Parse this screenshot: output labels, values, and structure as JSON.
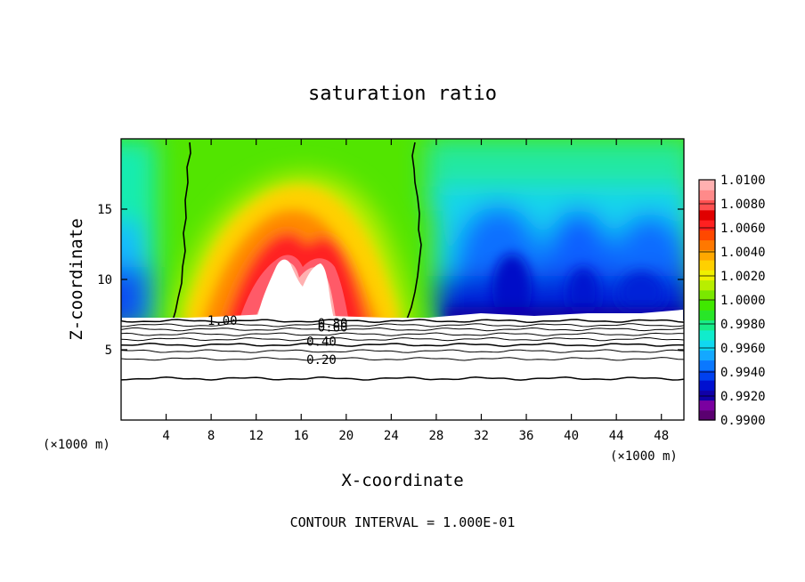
{
  "chart_data": {
    "type": "heatmap",
    "title": "saturation ratio",
    "xlabel": "X-coordinate",
    "ylabel": "Z-coordinate",
    "x_unit": "(×1000 m)",
    "y_unit": "(×1000 m)",
    "footer": "CONTOUR INTERVAL = 1.000E-01",
    "xlim": [
      0,
      50
    ],
    "ylim": [
      0,
      20
    ],
    "xticks": [
      4,
      8,
      12,
      16,
      20,
      24,
      28,
      32,
      36,
      40,
      44,
      48
    ],
    "yticks": [
      5,
      10,
      15
    ],
    "colorbar": {
      "min": 0.99,
      "max": 1.01,
      "labels": [
        "1.0100",
        "1.0080",
        "1.0060",
        "1.0040",
        "1.0020",
        "1.0000",
        "0.9980",
        "0.9960",
        "0.9940",
        "0.9920",
        "0.9900"
      ],
      "colors": [
        "#5a0070",
        "#7a00a0",
        "#1000a8",
        "#0010d0",
        "#0040f0",
        "#0a78ff",
        "#14a8ff",
        "#10d8f0",
        "#10eccc",
        "#18ec88",
        "#28e628",
        "#40e800",
        "#7ae800",
        "#b8ee00",
        "#f0f000",
        "#ffd000",
        "#ffa800",
        "#ff7800",
        "#ff4800",
        "#ff2020",
        "#e00000",
        "#ff5050",
        "#ff8a8a",
        "#ffb0b0"
      ]
    },
    "contour_labels": [
      {
        "text": "1.00",
        "x": 9.0,
        "z": 7.1
      },
      {
        "text": "0.80",
        "x": 18.8,
        "z": 6.9
      },
      {
        "text": "0.60",
        "x": 18.8,
        "z": 6.6
      },
      {
        "text": "0.40",
        "x": 17.8,
        "z": 5.6
      },
      {
        "text": "0.20",
        "x": 17.8,
        "z": 4.3
      }
    ],
    "contour_lines_z": [
      7.05,
      6.75,
      6.45,
      6.1,
      5.75,
      5.35,
      4.9,
      4.35,
      2.95
    ],
    "saturation_line_x": [
      {
        "x_bottom": 4.8,
        "x_top": 6.2
      },
      {
        "x_bottom": 25.0,
        "x_top": 26.0
      }
    ],
    "subsaturated_base_z": 7.2
  }
}
